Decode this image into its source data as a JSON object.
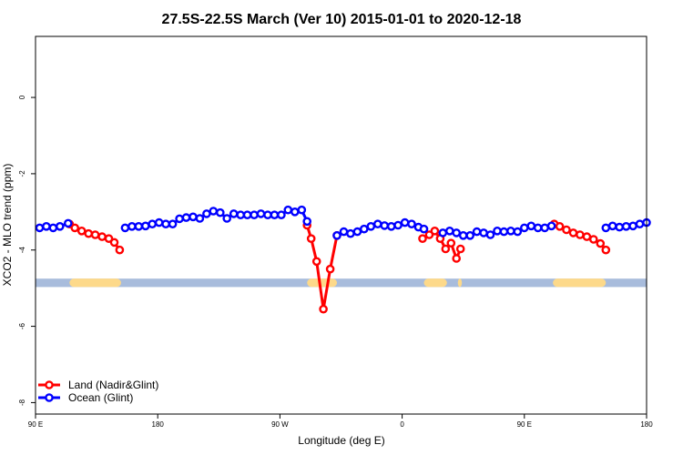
{
  "chart_data": {
    "type": "line",
    "title": "27.5S-22.5S March (Ver 10)   2015-01-01 to 2020-12-18",
    "xlabel": "Longitude (deg E)",
    "ylabel": "XCO2 - MLO trend (ppm)",
    "xlim": [
      90,
      540
    ],
    "ylim": [
      -8.3,
      1.6
    ],
    "x_ticks": [
      {
        "value": 90,
        "label": "90 E"
      },
      {
        "value": 180,
        "label": "180"
      },
      {
        "value": 270,
        "label": "90 W"
      },
      {
        "value": 360,
        "label": "0"
      },
      {
        "value": 450,
        "label": "90 E"
      },
      {
        "value": 540,
        "label": "180"
      }
    ],
    "y_ticks": [
      {
        "value": 0,
        "label": "0"
      },
      {
        "value": -2,
        "label": "-2"
      },
      {
        "value": -4,
        "label": "-4"
      },
      {
        "value": -6,
        "label": "-6"
      },
      {
        "value": -8,
        "label": "-8"
      }
    ],
    "legend_position": "bottom-left",
    "series": [
      {
        "name": "Land (Nadir&Glint)",
        "color": "#ff0000",
        "segments": [
          [
            [
              115,
              -3.32
            ],
            [
              119,
              -3.42
            ],
            [
              124,
              -3.5
            ],
            [
              129,
              -3.57
            ],
            [
              134,
              -3.6
            ],
            [
              139,
              -3.65
            ],
            [
              144,
              -3.7
            ],
            [
              148,
              -3.8
            ],
            [
              152,
              -4.0
            ]
          ],
          [
            [
              290,
              -3.35
            ],
            [
              293,
              -3.7
            ],
            [
              297,
              -4.3
            ],
            [
              302,
              -5.55
            ],
            [
              307,
              -4.5
            ],
            [
              312,
              -3.62
            ]
          ],
          [
            [
              375,
              -3.7
            ],
            [
              380,
              -3.6
            ],
            [
              384,
              -3.5
            ],
            [
              388,
              -3.7
            ],
            [
              392,
              -3.97
            ],
            [
              396,
              -3.82
            ],
            [
              400,
              -4.22
            ],
            [
              403,
              -3.97
            ]
          ],
          [
            [
              472,
              -3.32
            ],
            [
              476,
              -3.38
            ],
            [
              481,
              -3.47
            ],
            [
              486,
              -3.55
            ],
            [
              491,
              -3.6
            ],
            [
              496,
              -3.65
            ],
            [
              501,
              -3.72
            ],
            [
              506,
              -3.83
            ],
            [
              510,
              -4.0
            ]
          ]
        ]
      },
      {
        "name": "Ocean (Glint)",
        "color": "#0000ff",
        "segments": [
          [
            [
              93,
              -3.42
            ],
            [
              98,
              -3.38
            ],
            [
              103,
              -3.42
            ],
            [
              108,
              -3.38
            ],
            [
              114,
              -3.3
            ]
          ],
          [
            [
              156,
              -3.42
            ],
            [
              161,
              -3.38
            ],
            [
              166,
              -3.38
            ],
            [
              171,
              -3.37
            ],
            [
              176,
              -3.32
            ],
            [
              181,
              -3.28
            ],
            [
              186,
              -3.32
            ],
            [
              191,
              -3.32
            ],
            [
              196,
              -3.18
            ],
            [
              201,
              -3.15
            ],
            [
              206,
              -3.13
            ],
            [
              211,
              -3.17
            ],
            [
              216,
              -3.05
            ],
            [
              221,
              -2.98
            ],
            [
              226,
              -3.02
            ],
            [
              231,
              -3.17
            ],
            [
              236,
              -3.05
            ],
            [
              241,
              -3.08
            ],
            [
              246,
              -3.08
            ],
            [
              251,
              -3.08
            ],
            [
              256,
              -3.05
            ],
            [
              261,
              -3.08
            ],
            [
              266,
              -3.08
            ],
            [
              271,
              -3.08
            ],
            [
              276,
              -2.95
            ],
            [
              281,
              -3.0
            ],
            [
              286,
              -2.95
            ],
            [
              290,
              -3.25
            ]
          ],
          [
            [
              312,
              -3.62
            ],
            [
              317,
              -3.52
            ],
            [
              322,
              -3.57
            ],
            [
              327,
              -3.52
            ],
            [
              332,
              -3.45
            ],
            [
              337,
              -3.38
            ],
            [
              342,
              -3.32
            ],
            [
              347,
              -3.36
            ],
            [
              352,
              -3.38
            ],
            [
              357,
              -3.35
            ],
            [
              362,
              -3.28
            ],
            [
              367,
              -3.32
            ],
            [
              372,
              -3.4
            ],
            [
              376,
              -3.45
            ]
          ],
          [
            [
              390,
              -3.55
            ],
            [
              395,
              -3.5
            ],
            [
              400,
              -3.55
            ],
            [
              405,
              -3.62
            ],
            [
              410,
              -3.62
            ],
            [
              415,
              -3.52
            ],
            [
              420,
              -3.55
            ],
            [
              425,
              -3.6
            ],
            [
              430,
              -3.5
            ],
            [
              435,
              -3.52
            ],
            [
              440,
              -3.5
            ],
            [
              445,
              -3.52
            ],
            [
              450,
              -3.42
            ],
            [
              455,
              -3.37
            ],
            [
              460,
              -3.42
            ],
            [
              465,
              -3.42
            ],
            [
              470,
              -3.37
            ]
          ],
          [
            [
              510,
              -3.42
            ],
            [
              515,
              -3.37
            ],
            [
              520,
              -3.4
            ],
            [
              525,
              -3.38
            ],
            [
              530,
              -3.37
            ],
            [
              535,
              -3.32
            ],
            [
              540,
              -3.28
            ]
          ]
        ]
      }
    ],
    "surface_band": {
      "y_range": [
        -4.75,
        -4.97
      ],
      "ocean_color": "#a8bcdc",
      "land_color": "#fdd98a",
      "land_spans": [
        [
          115,
          153
        ],
        [
          290,
          312
        ],
        [
          376,
          393
        ],
        [
          401,
          404
        ],
        [
          471,
          510
        ]
      ]
    }
  }
}
